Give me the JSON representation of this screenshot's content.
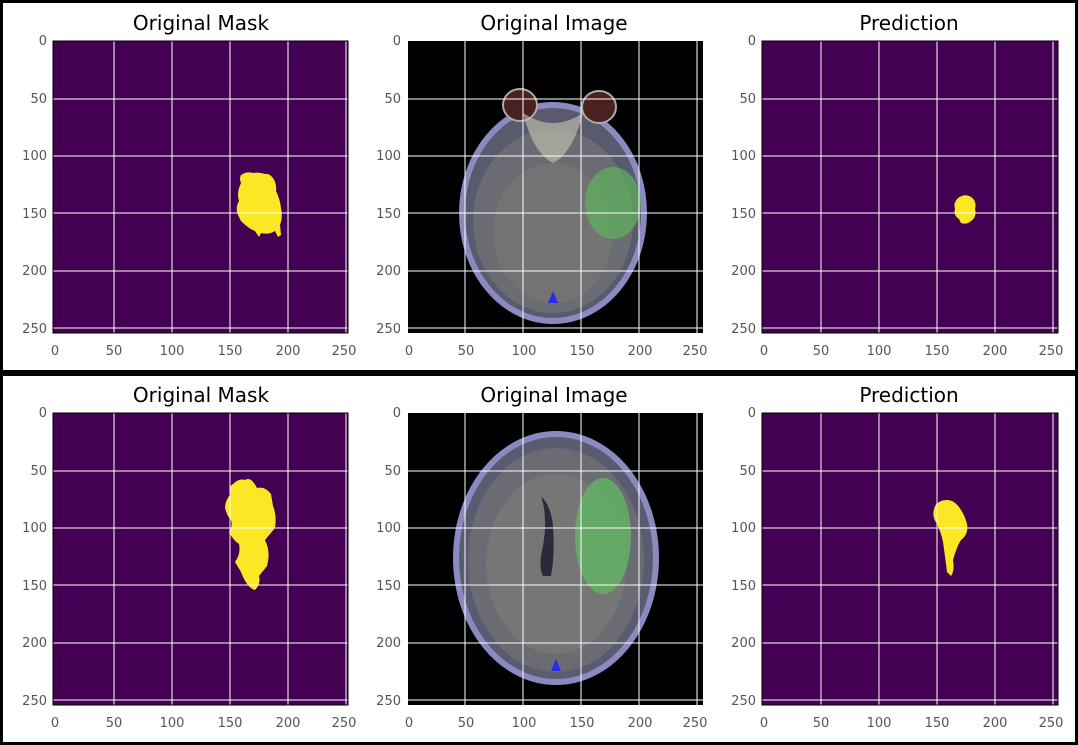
{
  "figures": [
    {
      "row": "top",
      "plots": [
        {
          "title": "Original Mask",
          "kind": "mask"
        },
        {
          "title": "Original Image",
          "kind": "image"
        },
        {
          "title": "Prediction",
          "kind": "prediction"
        }
      ]
    },
    {
      "row": "bottom",
      "plots": [
        {
          "title": "Original Mask",
          "kind": "mask"
        },
        {
          "title": "Original Image",
          "kind": "image"
        },
        {
          "title": "Prediction",
          "kind": "prediction"
        }
      ]
    }
  ],
  "axis": {
    "range": [
      0,
      255
    ],
    "xticks": [
      "0",
      "50",
      "100",
      "150",
      "200",
      "250"
    ],
    "yticks": [
      "0",
      "50",
      "100",
      "150",
      "200",
      "250"
    ],
    "grid": true
  },
  "colors": {
    "background_mask": "#440154",
    "foreground_mask": "#fde725",
    "grid": "#ffffff",
    "image_bg": "#000000"
  }
}
